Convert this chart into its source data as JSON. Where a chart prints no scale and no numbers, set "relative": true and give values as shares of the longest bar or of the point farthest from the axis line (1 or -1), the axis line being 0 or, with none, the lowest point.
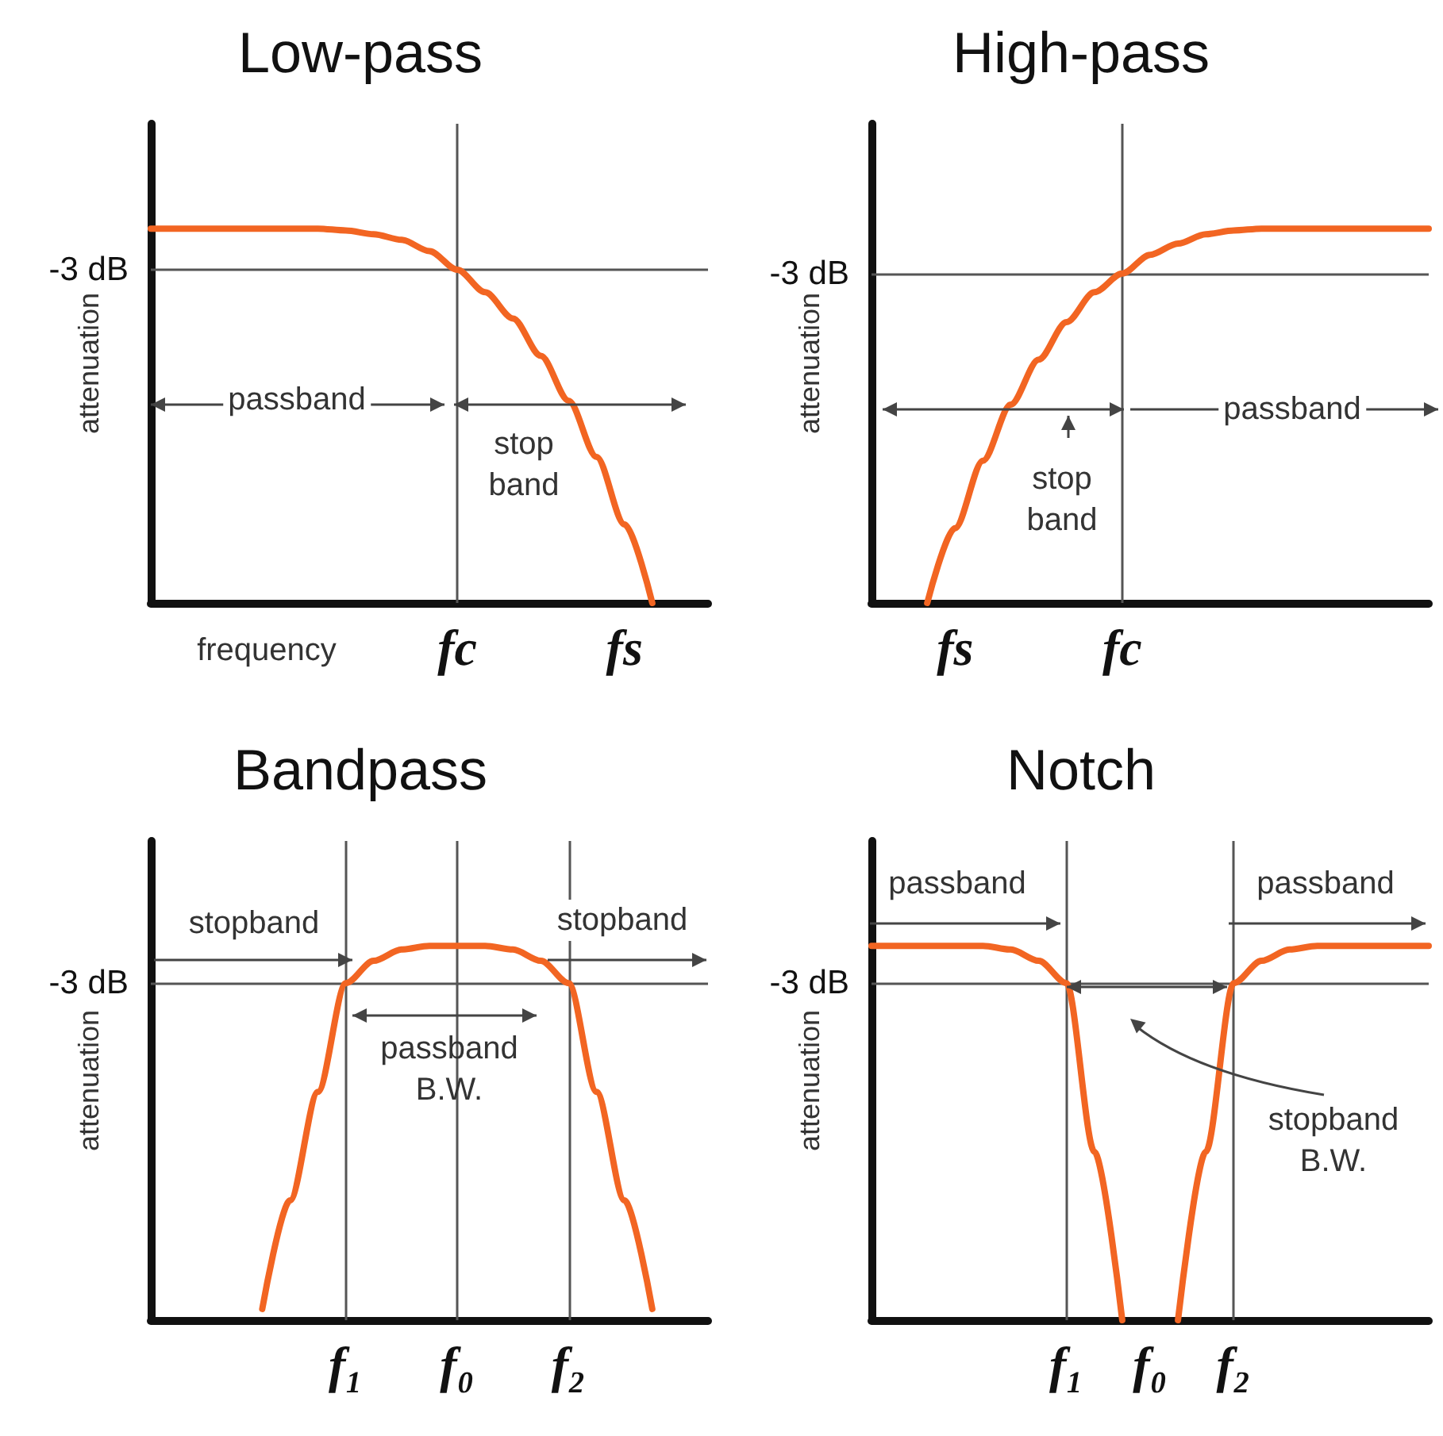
{
  "chart_data": [
    {
      "type": "line",
      "title": "Low-pass",
      "xlabel": "frequency",
      "ylabel": "attenuation",
      "relative": true,
      "categories": [
        null,
        null,
        null,
        null,
        null,
        null,
        null,
        null,
        null,
        null,
        null,
        "fc",
        null,
        null,
        null,
        null,
        null,
        "fs",
        null,
        null,
        null
      ],
      "series": [
        {
          "color": "#f26522",
          "values": [
            1,
            1,
            1,
            1,
            1,
            1,
            1,
            0.995,
            0.985,
            0.97,
            0.94,
            0.89,
            0.83,
            0.76,
            0.66,
            0.54,
            0.39,
            0.21,
            0,
            null,
            null
          ]
        }
      ],
      "ref_lines": [
        {
          "axis": "y",
          "value": 0.89,
          "label": "-3 dB"
        },
        {
          "axis": "x",
          "value": "fc"
        }
      ],
      "annotations": [
        "passband",
        "stop band"
      ]
    },
    {
      "type": "line",
      "title": "High-pass",
      "ylabel": "attenuation",
      "relative": true,
      "categories": [
        null,
        null,
        null,
        "fs",
        null,
        null,
        null,
        null,
        null,
        "fc",
        null,
        null,
        null,
        null,
        null,
        null,
        null,
        null,
        null,
        null,
        null
      ],
      "series": [
        {
          "color": "#f26522",
          "values": [
            null,
            null,
            0,
            0.2,
            0.38,
            0.53,
            0.65,
            0.75,
            0.83,
            0.88,
            0.93,
            0.96,
            0.985,
            0.995,
            1,
            1,
            1,
            1,
            1,
            1,
            1
          ]
        }
      ],
      "ref_lines": [
        {
          "axis": "y",
          "value": 0.88,
          "label": "-3 dB"
        },
        {
          "axis": "x",
          "value": "fc"
        }
      ],
      "annotations": [
        "stop band",
        "passband"
      ]
    },
    {
      "type": "line",
      "title": "Bandpass",
      "ylabel": "attenuation",
      "relative": true,
      "categories": [
        null,
        null,
        null,
        null,
        null,
        null,
        null,
        "f₁",
        null,
        null,
        null,
        "f₀",
        null,
        null,
        null,
        "f₂",
        null,
        null,
        null,
        null,
        null
      ],
      "series": [
        {
          "color": "#f26522",
          "values": [
            null,
            null,
            null,
            null,
            0.03,
            0.32,
            0.61,
            0.9,
            0.96,
            0.99,
            1,
            1,
            1,
            0.99,
            0.96,
            0.9,
            0.61,
            0.32,
            0.03,
            null,
            null
          ]
        }
      ],
      "ref_lines": [
        {
          "axis": "y",
          "value": 0.9,
          "label": "-3 dB"
        },
        {
          "axis": "x",
          "value": "f₁"
        },
        {
          "axis": "x",
          "value": "f₀"
        },
        {
          "axis": "x",
          "value": "f₂"
        }
      ],
      "annotations": [
        "stopband",
        "stopband",
        "passband B.W."
      ]
    },
    {
      "type": "line",
      "title": "Notch",
      "ylabel": "attenuation",
      "relative": true,
      "categories": [
        null,
        null,
        null,
        null,
        null,
        null,
        null,
        "f₁",
        null,
        null,
        "f₀",
        null,
        null,
        "f₂",
        null,
        null,
        null,
        null,
        null,
        null,
        null
      ],
      "series": [
        {
          "color": "#f26522",
          "values": [
            1,
            1,
            1,
            1,
            1,
            0.99,
            0.96,
            0.9,
            0.45,
            0,
            null,
            0,
            0.45,
            0.9,
            0.96,
            0.99,
            1,
            1,
            1,
            1,
            1
          ]
        }
      ],
      "ref_lines": [
        {
          "axis": "y",
          "value": 0.9,
          "label": "-3 dB"
        },
        {
          "axis": "x",
          "value": "f₁"
        },
        {
          "axis": "x",
          "value": "f₂"
        }
      ],
      "annotations": [
        "passband",
        "passband",
        "stopband B.W."
      ]
    }
  ]
}
